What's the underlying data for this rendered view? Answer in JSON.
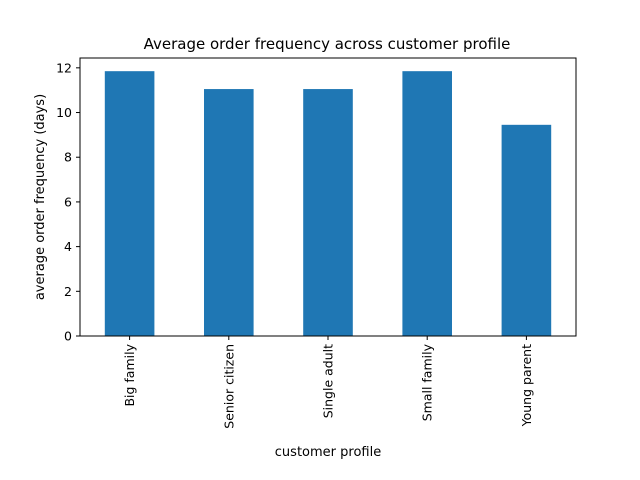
{
  "chart_data": {
    "type": "bar",
    "title": "Average order frequency across customer profile",
    "xlabel": "customer profile",
    "ylabel": "average order frequency (days)",
    "categories": [
      "Big family",
      "Senior citizen",
      "Single adult",
      "Small family",
      "Young parent"
    ],
    "values": [
      11.85,
      11.05,
      11.05,
      11.85,
      9.45
    ],
    "ylim": [
      0,
      12.44
    ],
    "yticks": [
      0,
      2,
      4,
      6,
      8,
      10,
      12
    ],
    "bar_color": "#1f77b4",
    "grid": false,
    "legend": "none"
  }
}
